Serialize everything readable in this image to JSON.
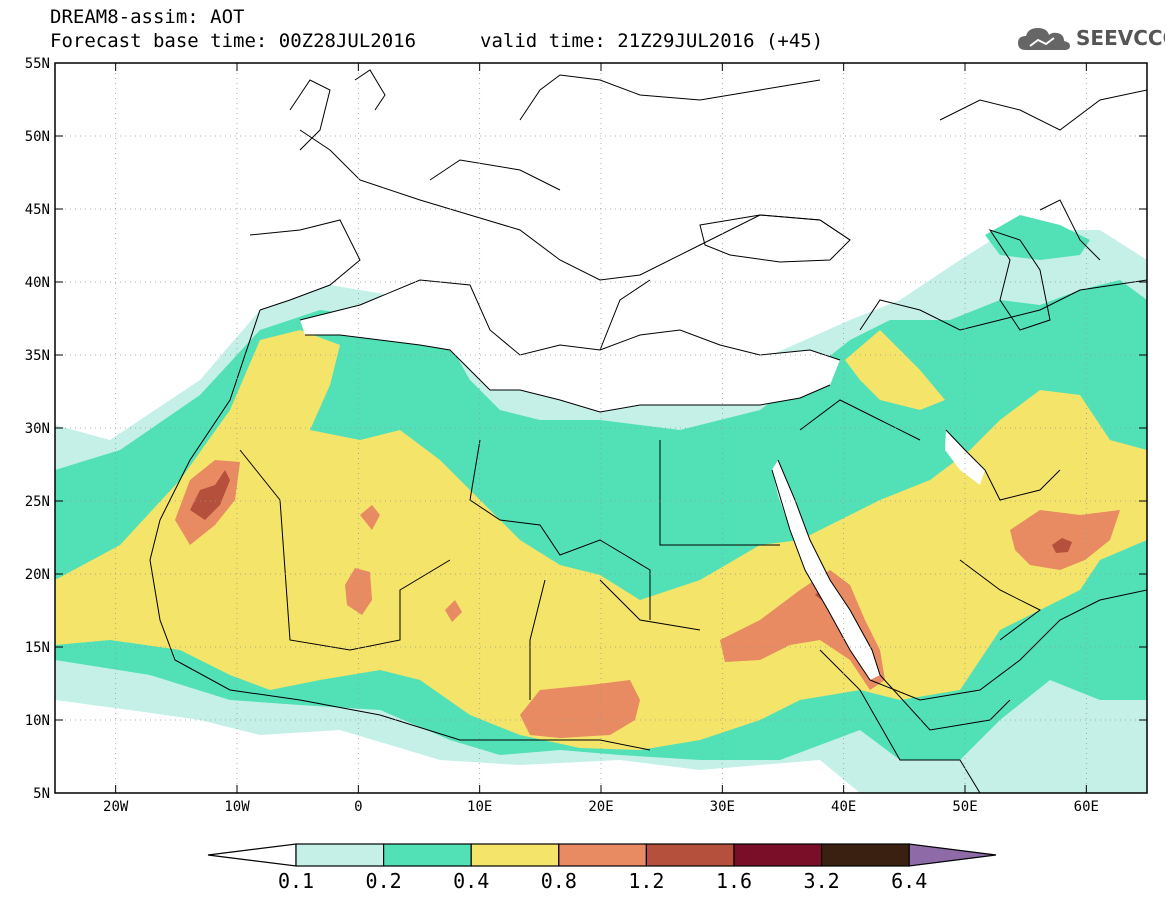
{
  "header": {
    "title_line1": "DREAM8-assim: AOT",
    "forecast_base": "Forecast base time: 00Z28JUL2016",
    "valid_time": "valid time: 21Z29JUL2016 (+45)"
  },
  "logo": {
    "text": "SEEVCCC",
    "icon": "cloud-icon"
  },
  "map": {
    "lat_labels": [
      "55N",
      "50N",
      "45N",
      "40N",
      "35N",
      "30N",
      "25N",
      "20N",
      "15N",
      "10N",
      "5N"
    ],
    "lon_labels": [
      "20W",
      "10W",
      "0",
      "10E",
      "20E",
      "30E",
      "40E",
      "50E",
      "60E"
    ],
    "lat_range": [
      5,
      55
    ],
    "lon_range": [
      -25,
      65
    ],
    "grid": true
  },
  "colorbar": {
    "levels": [
      "0.1",
      "0.2",
      "0.4",
      "0.8",
      "1.2",
      "1.6",
      "3.2",
      "6.4"
    ],
    "colors": [
      "#ffffff",
      "#c4f0e8",
      "#52e0b6",
      "#f5e46a",
      "#e88a62",
      "#b4503c",
      "#7a0e28",
      "#3a2010",
      "#8e6aa6"
    ]
  }
}
